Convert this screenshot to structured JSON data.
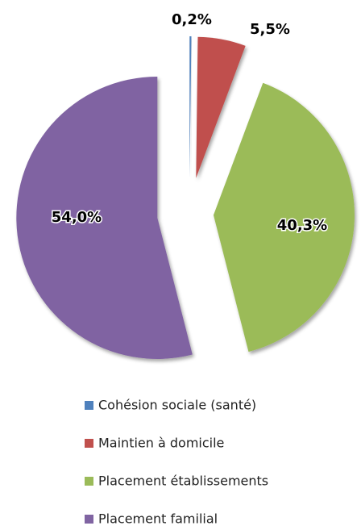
{
  "chart_data": {
    "type": "pie",
    "categories": [
      "Cohésion sociale (santé)",
      "Maintien à domicile",
      "Placement établissements",
      "Placement familial"
    ],
    "values": [
      0.2,
      5.5,
      40.3,
      54.0
    ],
    "value_labels": [
      "0,2%",
      "5,5%",
      "40,3%",
      "54,0%"
    ],
    "colors": [
      "#4f81bd",
      "#c0504d",
      "#9bbb59",
      "#8064a2"
    ]
  }
}
